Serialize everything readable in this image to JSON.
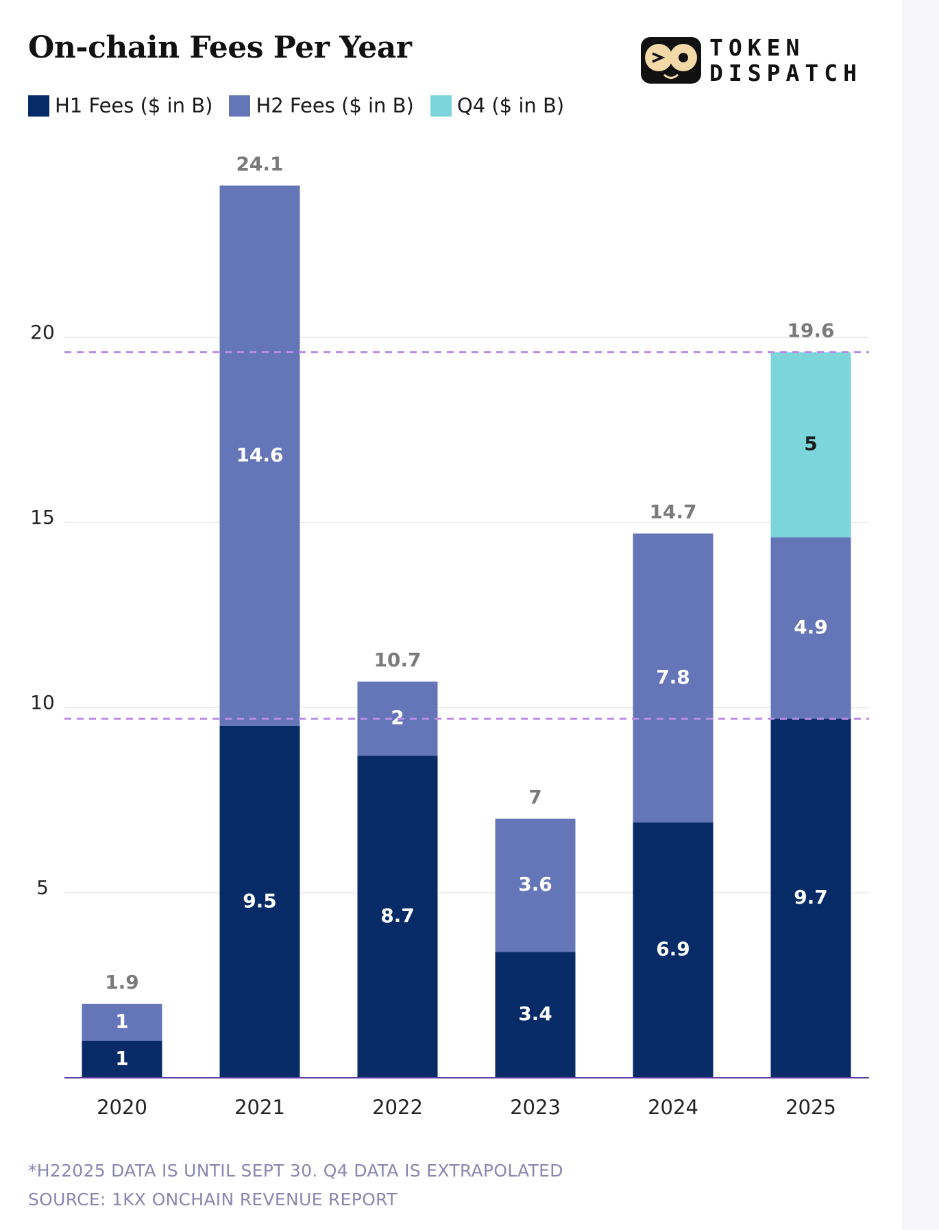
{
  "chart_data": {
    "type": "bar",
    "stacked": true,
    "title": "On-chain Fees Per Year",
    "categories": [
      "2020",
      "2021",
      "2022",
      "2023",
      "2024",
      "2025"
    ],
    "series": [
      {
        "name": "H1 Fees ($ in B)",
        "values": [
          1,
          9.5,
          8.7,
          3.4,
          6.9,
          9.7
        ],
        "labels": [
          "1",
          "9.5",
          "8.7",
          "3.4",
          "6.9",
          "9.7"
        ]
      },
      {
        "name": "H2 Fees ($ in B)",
        "values": [
          1,
          14.6,
          2,
          3.6,
          7.8,
          4.9
        ],
        "labels": [
          "1",
          "14.6",
          "2",
          "3.6",
          "7.8",
          "4.9"
        ]
      },
      {
        "name": "Q4 ($ in B)",
        "values": [
          null,
          null,
          null,
          null,
          null,
          5
        ],
        "labels": [
          "",
          "",
          "",
          "",
          "",
          "5"
        ]
      }
    ],
    "totals": [
      "1.9",
      "24.1",
      "10.7",
      "7",
      "14.7",
      "19.6"
    ],
    "y_ticks": [
      "5",
      "10",
      "15",
      "20"
    ],
    "ylim": [
      0,
      24.1
    ],
    "reference_lines": [
      19.6,
      9.7
    ],
    "grid": true,
    "legend_position": "top-left"
  },
  "colors": {
    "h1": "#062b66",
    "h2": "#6476b8",
    "q4": "#7dd5dc",
    "total_label": "#7a7a7a",
    "reference_line": "#b98de6",
    "baseline": "#5b3fa3",
    "gridline": "#e6e6e6"
  },
  "logo": {
    "line1": "TOKEN",
    "line2": "DISPATCH"
  },
  "footnotes": {
    "line1": "*H22025 DATA IS UNTIL SEPT 30. Q4 DATA IS EXTRAPOLATED",
    "line2": "SOURCE: 1KX ONCHAIN REVENUE REPORT"
  }
}
